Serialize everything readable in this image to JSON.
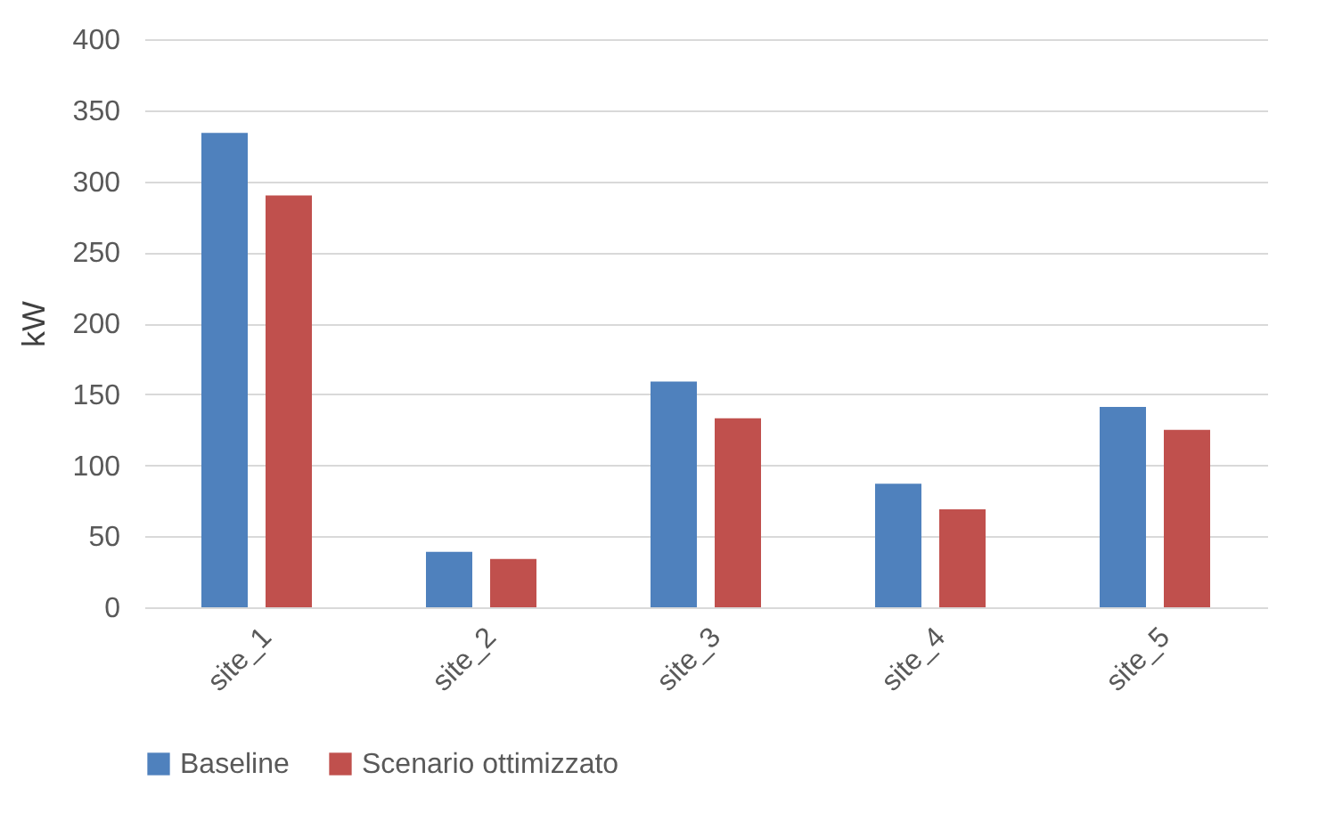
{
  "chart_data": {
    "type": "bar",
    "ylabel": "kW",
    "categories": [
      "site_1",
      "site_2",
      "site_3",
      "site_4",
      "site_5"
    ],
    "series": [
      {
        "name": "Baseline",
        "color": "#4f81bd",
        "values": [
          334,
          39,
          159,
          87,
          141
        ]
      },
      {
        "name": "Scenario ottimizzato",
        "color": "#c0504d",
        "values": [
          290,
          34,
          133,
          69,
          125
        ]
      }
    ],
    "ylim": [
      0,
      400
    ],
    "yticks": [
      0,
      50,
      100,
      150,
      200,
      250,
      300,
      350,
      400
    ],
    "grid": "y",
    "legend": "bottom"
  }
}
